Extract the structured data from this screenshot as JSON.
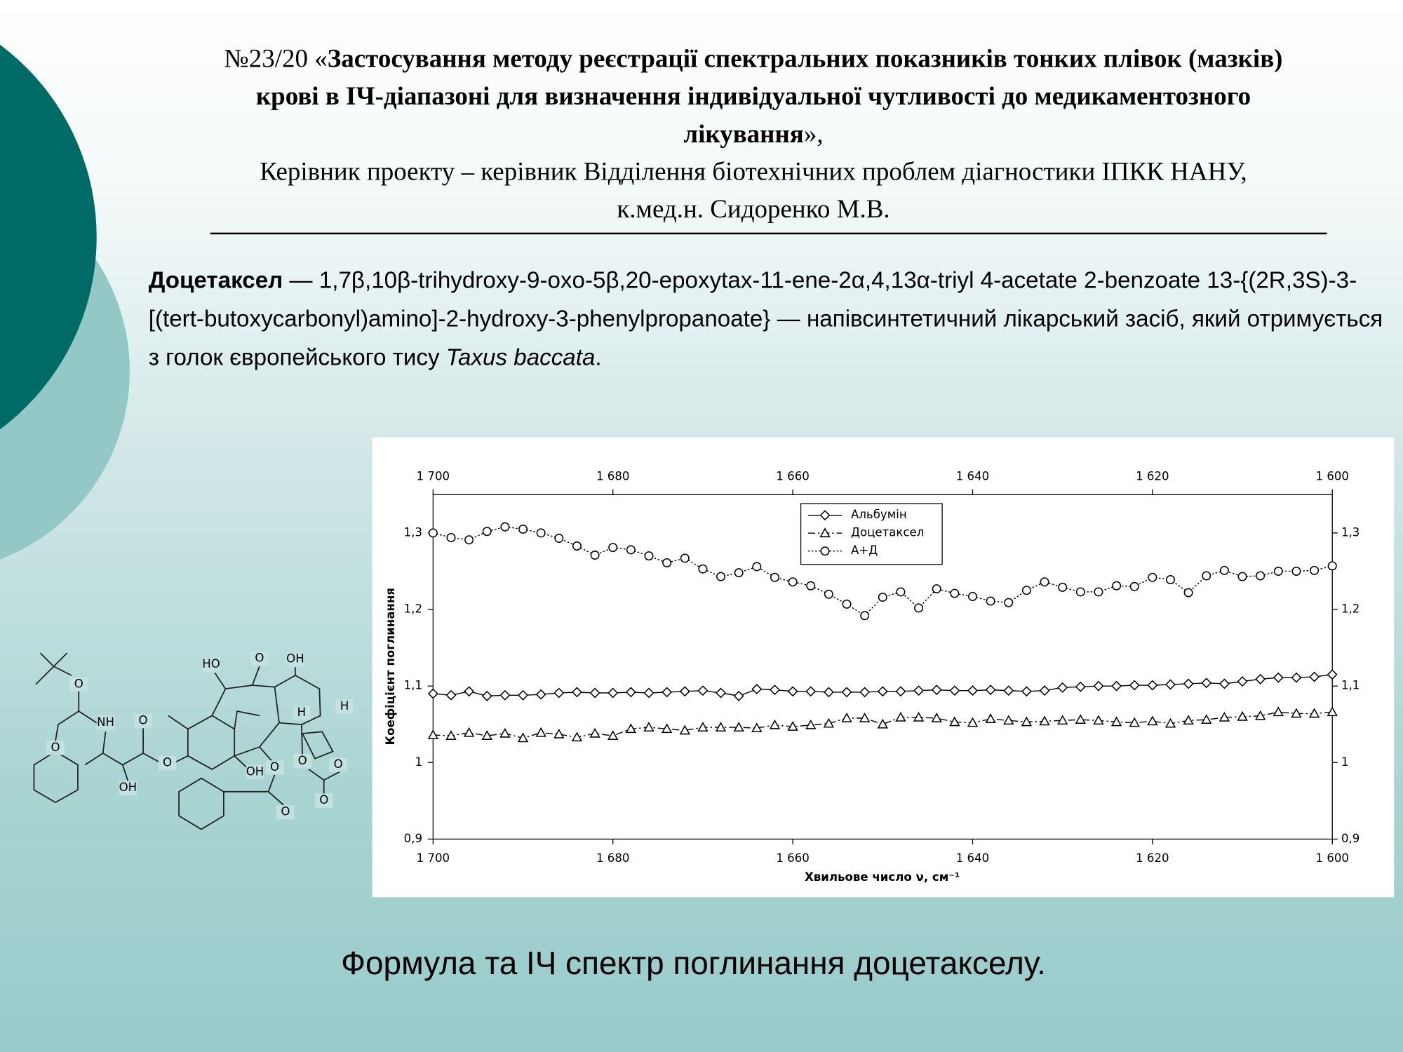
{
  "header": {
    "number": "№23/20 «",
    "title": "Застосування методу реєстрації спектральних показників тонких плівок (мазків) крові в ІЧ-діапазоні для визначення індивідуальної чутливості до медикаментозного лікування",
    "title_end": "»,",
    "supervisor": "Керівник проекту – керівник Відділення біотехнічних проблем діагностики ІПКК НАНУ, к.мед.н. Сидоренко М.В."
  },
  "description": {
    "term": "Доцетаксел",
    "text": " — 1,7β,10β-trihydroxy-9-oxo-5β,20-epoxytax-11-ene-2α,4,13α-triyl 4-acetate 2-benzoate 13-{(2R,3S)-3-[(tert-butoxycarbonyl)amino]-2-hydroxy-3-phenylpropanoate} — напівсинтетичний лікарський засіб, який отримується з голок європейського тису ",
    "species": "Taxus baccata",
    "end": "."
  },
  "molecule": {
    "labels": [
      "O",
      "O",
      "NH",
      "O",
      "OH",
      "O",
      "HO",
      "O",
      "OH",
      "H",
      "H",
      "O",
      "OH",
      "O",
      "O",
      "O",
      "O"
    ]
  },
  "caption": "Формула та ІЧ спектр поглинання доцетакселу.",
  "chart_data": {
    "type": "line",
    "x_label": "Хвильове число ν, см⁻¹",
    "y_label": "Коефіцієнт поглинання",
    "x": [
      1700,
      1698,
      1696,
      1694,
      1692,
      1690,
      1688,
      1686,
      1684,
      1682,
      1680,
      1678,
      1676,
      1674,
      1672,
      1670,
      1668,
      1666,
      1664,
      1662,
      1660,
      1658,
      1656,
      1654,
      1652,
      1650,
      1648,
      1646,
      1644,
      1642,
      1640,
      1638,
      1636,
      1634,
      1632,
      1630,
      1628,
      1626,
      1624,
      1622,
      1620,
      1618,
      1616,
      1614,
      1612,
      1610,
      1608,
      1606,
      1604,
      1602,
      1600
    ],
    "xlim": [
      1700,
      1600
    ],
    "xticks": [
      {
        "value": 1700,
        "label": "1 700"
      },
      {
        "value": 1680,
        "label": "1 680"
      },
      {
        "value": 1660,
        "label": "1 660"
      },
      {
        "value": 1640,
        "label": "1 640"
      },
      {
        "value": 1620,
        "label": "1 620"
      },
      {
        "value": 1600,
        "label": "1 600"
      }
    ],
    "ylim": [
      0.9,
      1.35
    ],
    "yticks": [
      {
        "value": 0.9,
        "label": "0,9"
      },
      1,
      {
        "value": 1.1,
        "label": "1,1"
      },
      {
        "value": 1.2,
        "label": "1,2"
      },
      {
        "value": 1.3,
        "label": "1,3"
      }
    ],
    "legend": "top",
    "series": [
      {
        "name": "Альбумін",
        "color": "#000000",
        "marker": "diamond",
        "line_style": "solid",
        "values": [
          1.09,
          1.088,
          1.093,
          1.087,
          1.088,
          1.088,
          1.089,
          1.091,
          1.092,
          1.091,
          1.091,
          1.092,
          1.091,
          1.092,
          1.093,
          1.094,
          1.091,
          1.087,
          1.096,
          1.095,
          1.093,
          1.093,
          1.092,
          1.092,
          1.092,
          1.093,
          1.093,
          1.094,
          1.095,
          1.094,
          1.094,
          1.095,
          1.094,
          1.093,
          1.094,
          1.098,
          1.099,
          1.1,
          1.1,
          1.101,
          1.101,
          1.102,
          1.103,
          1.104,
          1.103,
          1.106,
          1.109,
          1.111,
          1.111,
          1.112,
          1.115
        ]
      },
      {
        "name": "Доцетаксел",
        "color": "#000000",
        "marker": "triangle",
        "line_style": "dashdot",
        "values": [
          1.036,
          1.035,
          1.039,
          1.035,
          1.038,
          1.032,
          1.039,
          1.037,
          1.033,
          1.038,
          1.035,
          1.044,
          1.046,
          1.044,
          1.042,
          1.046,
          1.046,
          1.046,
          1.045,
          1.049,
          1.047,
          1.049,
          1.051,
          1.058,
          1.058,
          1.05,
          1.059,
          1.059,
          1.058,
          1.053,
          1.052,
          1.057,
          1.055,
          1.053,
          1.054,
          1.055,
          1.056,
          1.055,
          1.053,
          1.052,
          1.054,
          1.051,
          1.055,
          1.056,
          1.059,
          1.06,
          1.061,
          1.066,
          1.064,
          1.064,
          1.066
        ]
      },
      {
        "name": "А+Д",
        "color": "#000000",
        "marker": "circle",
        "line_style": "dotted",
        "values": [
          1.3,
          1.294,
          1.291,
          1.302,
          1.308,
          1.305,
          1.3,
          1.293,
          1.283,
          1.271,
          1.281,
          1.278,
          1.27,
          1.261,
          1.267,
          1.253,
          1.243,
          1.248,
          1.256,
          1.242,
          1.236,
          1.231,
          1.22,
          1.207,
          1.192,
          1.216,
          1.223,
          1.202,
          1.227,
          1.221,
          1.217,
          1.211,
          1.209,
          1.225,
          1.236,
          1.229,
          1.223,
          1.223,
          1.231,
          1.23,
          1.242,
          1.239,
          1.222,
          1.244,
          1.251,
          1.243,
          1.244,
          1.25,
          1.25,
          1.251,
          1.257
        ]
      }
    ]
  }
}
